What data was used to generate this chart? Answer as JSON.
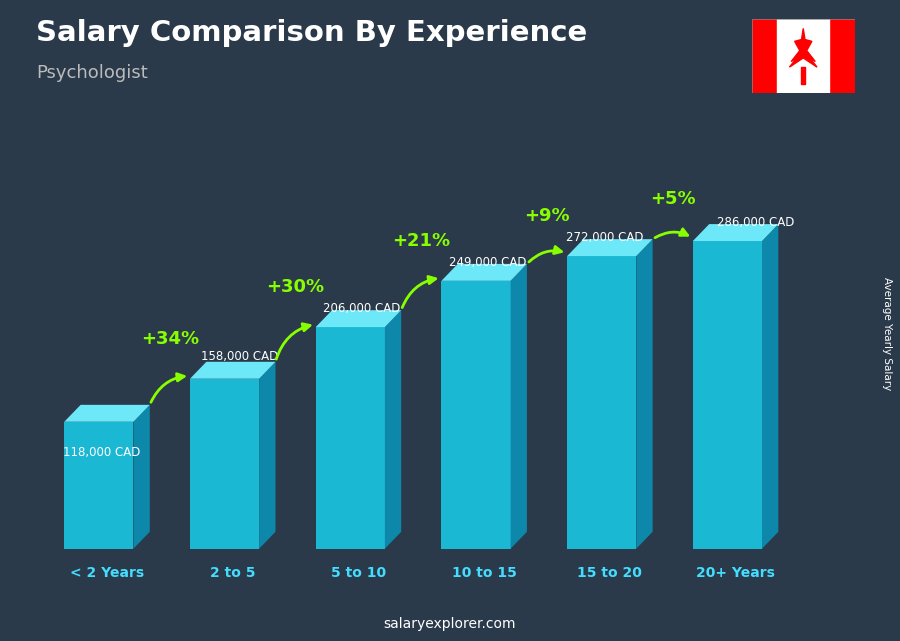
{
  "title": "Salary Comparison By Experience",
  "subtitle": "Psychologist",
  "categories": [
    "< 2 Years",
    "2 to 5",
    "5 to 10",
    "10 to 15",
    "15 to 20",
    "20+ Years"
  ],
  "values": [
    118000,
    158000,
    206000,
    249000,
    272000,
    286000
  ],
  "value_labels": [
    "118,000 CAD",
    "158,000 CAD",
    "206,000 CAD",
    "249,000 CAD",
    "272,000 CAD",
    "286,000 CAD"
  ],
  "pct_changes": [
    "+34%",
    "+30%",
    "+21%",
    "+9%",
    "+5%"
  ],
  "col_front": "#1BB8D4",
  "col_top": "#6DE8F8",
  "col_side": "#0E88AA",
  "pct_color": "#88FF00",
  "xlabel_color": "#44DDFF",
  "watermark": "salaryexplorer.com",
  "ylabel_text": "Average Yearly Salary",
  "bg_color": "#2a3a4a",
  "fig_width": 9.0,
  "fig_height": 6.41
}
